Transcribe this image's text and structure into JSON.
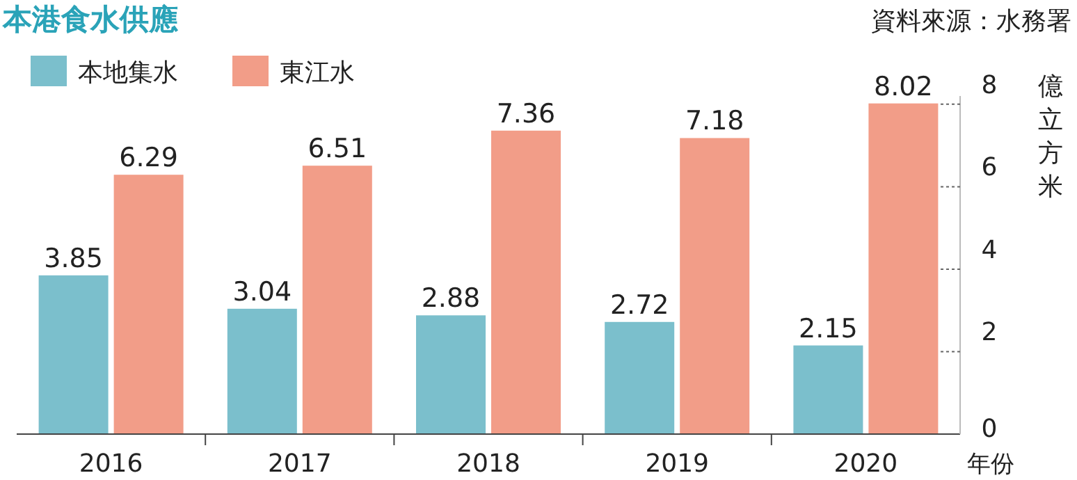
{
  "chart_data": {
    "type": "bar",
    "title": "本港食水供應",
    "annotations": [
      "資料來源：水務署"
    ],
    "categories": [
      "2016",
      "2017",
      "2018",
      "2019",
      "2020"
    ],
    "series": [
      {
        "name": "本地集水",
        "color": "#7bbfcc",
        "values": [
          3.85,
          3.04,
          2.88,
          2.72,
          2.15
        ]
      },
      {
        "name": "東江水",
        "color": "#f29d88",
        "values": [
          6.29,
          6.51,
          7.36,
          7.18,
          8.02
        ]
      }
    ],
    "ylabel": "億立方米",
    "xlabel": "年份",
    "ylim": [
      0,
      8.2
    ],
    "yticks": [
      0,
      2,
      4,
      6,
      8
    ],
    "data_labels": true,
    "legend": "top left",
    "grid": false
  }
}
